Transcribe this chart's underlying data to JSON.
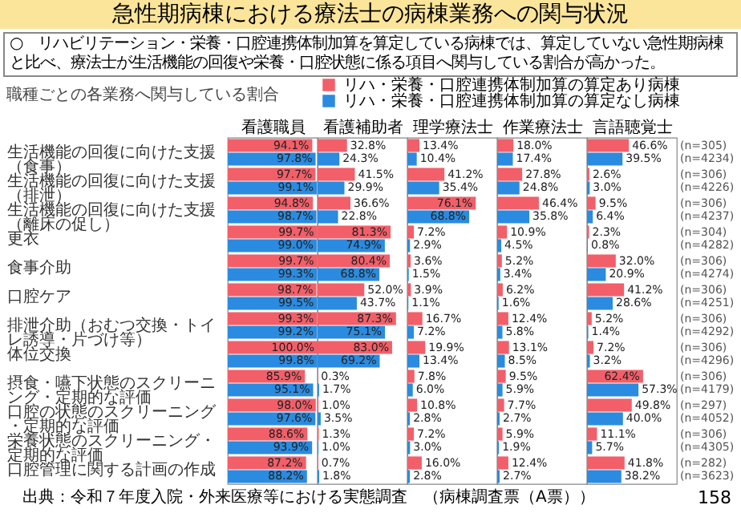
{
  "chart_data": [
    {
      "type": "other",
      "title": "急性期病棟における療法士の病棟業務への関与状況",
      "subtitle": "○　リハビリテーション・栄養・口腔連携体制加算を算定している病棟では、算定していない急性期病棟と比べ、療法士が生活機能の回復や栄養・口腔状態に係る項目へ関与している割合が高かった。",
      "annotations": [
        "職種ごとの各業務へ関与している割合",
        "出典：令和７年度入院・外来医療等における実態調査　（病棟調査票（A票））",
        "158"
      ]
    },
    {
      "type": "bar",
      "orientation": "horizontal",
      "title": "看護職員",
      "xlim": [
        0,
        100
      ],
      "tick_labels": "y",
      "legend": "top",
      "categories": [
        "生活機能の回復に向けた支援（食事）",
        "生活機能の回復に向けた支援（排泄）",
        "生活機能の回復に向けた支援（離床の促し）",
        "更衣",
        "食事介助",
        "口腔ケア",
        "排泄介助（おむつ交換・トイレ誘導・片づけ等）",
        "体位交換",
        "摂食・嚥下状態のスクリーニング・定期的な評価",
        "口腔の状態のスクリーニング・定期的な評価",
        "栄養状態のスクリーニング・定期的な評価",
        "口腔管理に関する計画の作成"
      ],
      "series": [
        {
          "name": "リハ・栄養・口腔連携体制加算の算定あり病棟",
          "color": "#f25f69",
          "values": [
            94.1,
            97.7,
            94.8,
            99.7,
            99.7,
            98.7,
            99.3,
            100.0,
            85.9,
            98.0,
            88.6,
            87.2
          ],
          "value_labels": [
            "94.1%",
            "97.7%",
            "94.8%",
            "99.7%",
            "99.7%",
            "98.7%",
            "99.3%",
            "100.0%",
            "85.9%",
            "98.0%",
            "88.6%",
            "87.2%"
          ]
        },
        {
          "name": "リハ・栄養・口腔連携体制加算の算定なし病棟",
          "color": "#2a8be0",
          "values": [
            97.8,
            99.1,
            98.7,
            99.0,
            99.3,
            99.5,
            99.2,
            99.8,
            95.1,
            97.6,
            93.9,
            88.2
          ],
          "value_labels": [
            "97.8%",
            "99.1%",
            "98.7%",
            "99.0%",
            "99.3%",
            "99.5%",
            "99.2%",
            "99.8%",
            "95.1%",
            "97.6%",
            "93.9%",
            "88.2%"
          ]
        }
      ]
    },
    {
      "type": "bar",
      "orientation": "horizontal",
      "title": "看護補助者",
      "xlim": [
        0,
        100
      ],
      "tick_labels": false,
      "categories": [
        "生活機能の回復に向けた支援（食事）",
        "生活機能の回復に向けた支援（排泄）",
        "生活機能の回復に向けた支援（離床の促し）",
        "更衣",
        "食事介助",
        "口腔ケア",
        "排泄介助（おむつ交換・トイレ誘導・片づけ等）",
        "体位交換",
        "摂食・嚥下状態のスクリーニング・定期的な評価",
        "口腔の状態のスクリーニング・定期的な評価",
        "栄養状態のスクリーニング・定期的な評価",
        "口腔管理に関する計画の作成"
      ],
      "series": [
        {
          "color": "#f25f69",
          "values": [
            32.8,
            41.5,
            36.6,
            81.3,
            80.4,
            52.0,
            87.3,
            83.0,
            0.3,
            1.0,
            1.3,
            0.7
          ],
          "value_labels": [
            "32.8%",
            "41.5%",
            "36.6%",
            "81.3%",
            "80.4%",
            "52.0%",
            "87.3%",
            "83.0%",
            "0.3%",
            "1.0%",
            "1.3%",
            "0.7%"
          ]
        },
        {
          "color": "#2a8be0",
          "values": [
            24.3,
            29.9,
            22.8,
            74.9,
            68.8,
            43.7,
            75.1,
            69.2,
            1.7,
            3.5,
            1.0,
            1.8
          ],
          "value_labels": [
            "24.3%",
            "29.9%",
            "22.8%",
            "74.9%",
            "68.8%",
            "43.7%",
            "75.1%",
            "69.2%",
            "1.7%",
            "3.5%",
            "1.0%",
            "1.8%"
          ]
        }
      ]
    },
    {
      "type": "bar",
      "orientation": "horizontal",
      "title": "理学療法士",
      "xlim": [
        0,
        100
      ],
      "tick_labels": false,
      "categories": [
        "生活機能の回復に向けた支援（食事）",
        "生活機能の回復に向けた支援（排泄）",
        "生活機能の回復に向けた支援（離床の促し）",
        "更衣",
        "食事介助",
        "口腔ケア",
        "排泄介助（おむつ交換・トイレ誘導・片づけ等）",
        "体位交換",
        "摂食・嚥下状態のスクリーニング・定期的な評価",
        "口腔の状態のスクリーニング・定期的な評価",
        "栄養状態のスクリーニング・定期的な評価",
        "口腔管理に関する計画の作成"
      ],
      "series": [
        {
          "color": "#f25f69",
          "values": [
            13.4,
            41.2,
            76.1,
            7.2,
            3.6,
            3.9,
            16.7,
            19.9,
            7.8,
            10.8,
            7.2,
            16.0
          ],
          "value_labels": [
            "13.4%",
            "41.2%",
            "76.1%",
            "7.2%",
            "3.6%",
            "3.9%",
            "16.7%",
            "19.9%",
            "7.8%",
            "10.8%",
            "7.2%",
            "16.0%"
          ]
        },
        {
          "color": "#2a8be0",
          "values": [
            10.4,
            35.4,
            68.8,
            2.9,
            1.5,
            1.1,
            7.2,
            13.4,
            6.0,
            2.8,
            3.0,
            2.8
          ],
          "value_labels": [
            "10.4%",
            "35.4%",
            "68.8%",
            "2.9%",
            "1.5%",
            "1.1%",
            "7.2%",
            "13.4%",
            "6.0%",
            "2.8%",
            "3.0%",
            "2.8%"
          ]
        }
      ]
    },
    {
      "type": "bar",
      "orientation": "horizontal",
      "title": "作業療法士",
      "xlim": [
        0,
        100
      ],
      "tick_labels": false,
      "categories": [
        "生活機能の回復に向けた支援（食事）",
        "生活機能の回復に向けた支援（排泄）",
        "生活機能の回復に向けた支援（離床の促し）",
        "更衣",
        "食事介助",
        "口腔ケア",
        "排泄介助（おむつ交換・トイレ誘導・片づけ等）",
        "体位交換",
        "摂食・嚥下状態のスクリーニング・定期的な評価",
        "口腔の状態のスクリーニング・定期的な評価",
        "栄養状態のスクリーニング・定期的な評価",
        "口腔管理に関する計画の作成"
      ],
      "series": [
        {
          "color": "#f25f69",
          "values": [
            18.0,
            27.8,
            46.4,
            10.9,
            5.2,
            6.2,
            12.4,
            13.1,
            9.5,
            7.7,
            5.9,
            12.4
          ],
          "value_labels": [
            "18.0%",
            "27.8%",
            "46.4%",
            "10.9%",
            "5.2%",
            "6.2%",
            "12.4%",
            "13.1%",
            "9.5%",
            "7.7%",
            "5.9%",
            "12.4%"
          ]
        },
        {
          "color": "#2a8be0",
          "values": [
            17.4,
            24.8,
            35.8,
            4.5,
            3.4,
            1.6,
            5.8,
            8.5,
            5.9,
            2.7,
            1.9,
            2.7
          ],
          "value_labels": [
            "17.4%",
            "24.8%",
            "35.8%",
            "4.5%",
            "3.4%",
            "1.6%",
            "5.8%",
            "8.5%",
            "5.9%",
            "2.7%",
            "1.9%",
            "2.7%"
          ]
        }
      ]
    },
    {
      "type": "bar",
      "orientation": "horizontal",
      "title": "言語聴覚士",
      "xlim": [
        0,
        100
      ],
      "tick_labels": false,
      "categories": [
        "生活機能の回復に向けた支援（食事）",
        "生活機能の回復に向けた支援（排泄）",
        "生活機能の回復に向けた支援（離床の促し）",
        "更衣",
        "食事介助",
        "口腔ケア",
        "排泄介助（おむつ交換・トイレ誘導・片づけ等）",
        "体位交換",
        "摂食・嚥下状態のスクリーニング・定期的な評価",
        "口腔の状態のスクリーニング・定期的な評価",
        "栄養状態のスクリーニング・定期的な評価",
        "口腔管理に関する計画の作成"
      ],
      "series": [
        {
          "color": "#f25f69",
          "values": [
            46.6,
            2.6,
            9.5,
            2.3,
            32.0,
            41.2,
            5.2,
            7.2,
            62.4,
            49.8,
            11.1,
            41.8
          ],
          "value_labels": [
            "46.6%",
            "2.6%",
            "9.5%",
            "2.3%",
            "32.0%",
            "41.2%",
            "5.2%",
            "7.2%",
            "62.4%",
            "49.8%",
            "11.1%",
            "41.8%"
          ]
        },
        {
          "color": "#2a8be0",
          "values": [
            39.5,
            3.0,
            6.4,
            0.8,
            20.9,
            28.6,
            1.4,
            3.2,
            57.3,
            40.0,
            5.7,
            38.2
          ],
          "value_labels": [
            "39.5%",
            "3.0%",
            "6.4%",
            "0.8%",
            "20.9%",
            "28.6%",
            "1.4%",
            "3.2%",
            "57.3%",
            "40.0%",
            "5.7%",
            "38.2%"
          ]
        }
      ],
      "annotations": [
        "(n=305)",
        "(n=4234)",
        "(n=306)",
        "(n=4226)",
        "(n=306)",
        "(n=4237)",
        "(n=304)",
        "(n=4282)",
        "(n=306)",
        "(n=4274)",
        "(n=306)",
        "(n=4251)",
        "(n=306)",
        "(n=4292)",
        "(n=306)",
        "(n=4296)",
        "(n=306)",
        "(n=4179)",
        "(n=297)",
        "(n=4052)",
        "(n=306)",
        "(n=4305)",
        "(n=282)",
        "(n=3623)"
      ]
    }
  ]
}
